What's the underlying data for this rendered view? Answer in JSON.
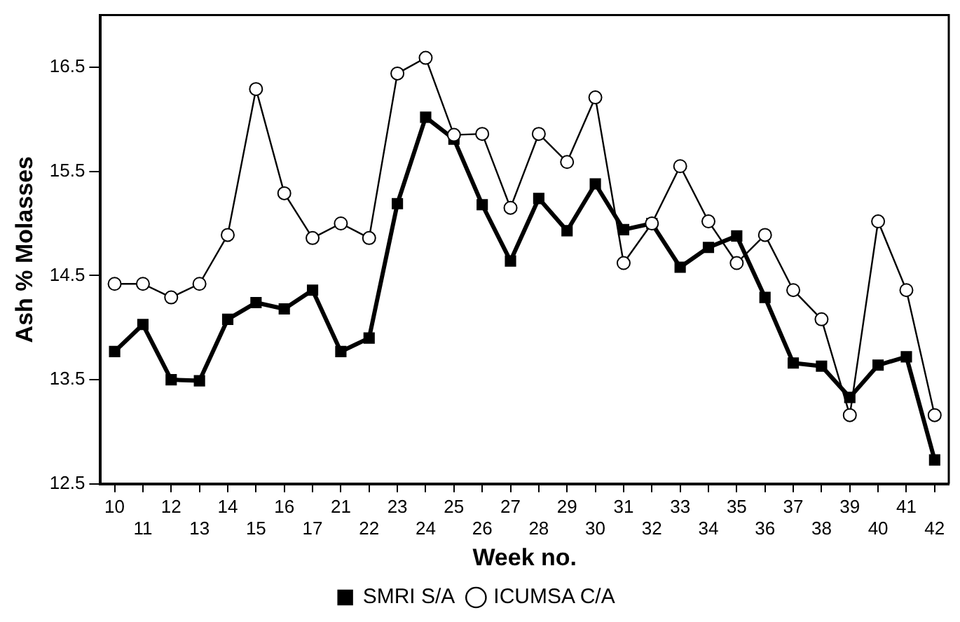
{
  "chart_data": {
    "type": "line",
    "xlabel": "Week no.",
    "ylabel": "Ash % Molasses",
    "categories": [
      "10",
      "11",
      "12",
      "13",
      "14",
      "15",
      "16",
      "17",
      "21",
      "22",
      "23",
      "24",
      "25",
      "26",
      "27",
      "28",
      "29",
      "30",
      "31",
      "32",
      "33",
      "34",
      "35",
      "36",
      "37",
      "38",
      "39",
      "40",
      "41",
      "42"
    ],
    "series": [
      {
        "name": "SMRI S/A",
        "color": "#000000",
        "marker": "square",
        "values": [
          13.77,
          14.03,
          13.5,
          13.49,
          14.08,
          14.24,
          14.18,
          14.36,
          13.77,
          13.9,
          15.19,
          16.02,
          15.81,
          15.18,
          14.64,
          15.24,
          14.93,
          15.38,
          14.94,
          15.0,
          14.58,
          14.77,
          14.88,
          14.29,
          13.66,
          13.63,
          13.33,
          13.64,
          13.72,
          12.73
        ]
      },
      {
        "name": "ICUMSA C/A",
        "color": "#000000",
        "marker": "circle",
        "values": [
          14.42,
          14.42,
          14.29,
          14.42,
          14.89,
          16.29,
          15.29,
          14.86,
          15.0,
          14.86,
          16.44,
          16.59,
          15.85,
          15.86,
          15.15,
          15.86,
          15.59,
          16.21,
          14.62,
          15.0,
          15.55,
          15.02,
          14.62,
          14.89,
          14.36,
          14.08,
          13.16,
          15.02,
          14.36,
          13.16
        ]
      }
    ],
    "ylim": [
      12.5,
      17.0
    ],
    "yticks": [
      12.5,
      13.5,
      14.5,
      15.5,
      16.5
    ],
    "grid": false,
    "legend": "bottom",
    "line_style": "solid"
  }
}
